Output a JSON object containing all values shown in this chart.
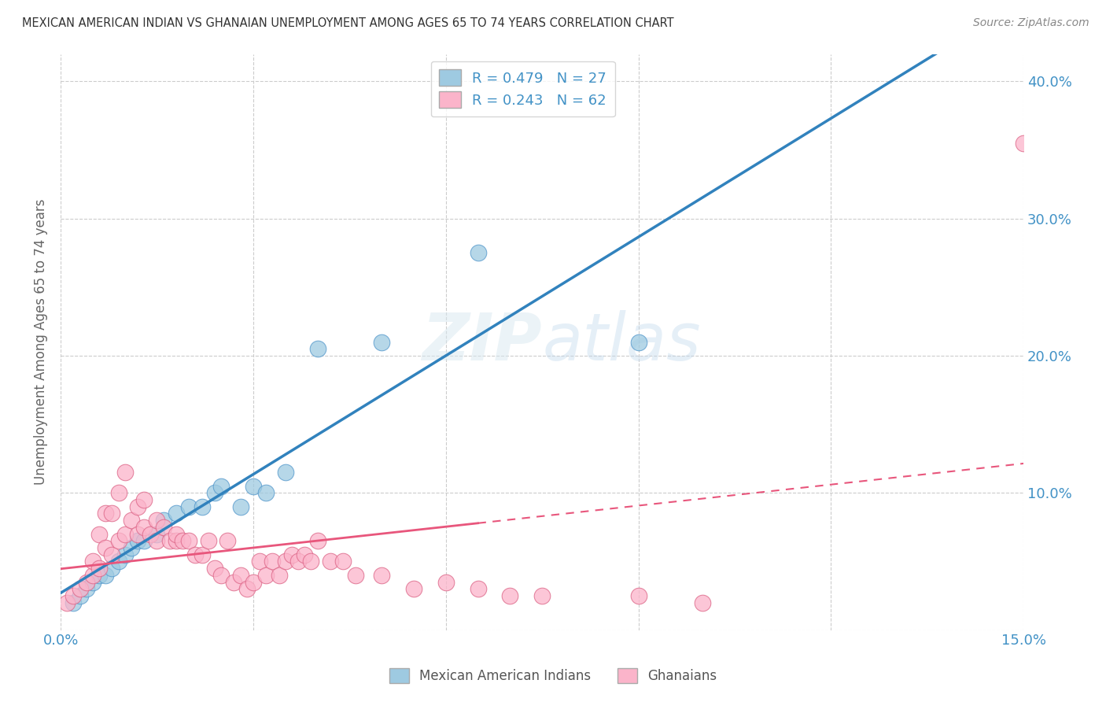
{
  "title": "MEXICAN AMERICAN INDIAN VS GHANAIAN UNEMPLOYMENT AMONG AGES 65 TO 74 YEARS CORRELATION CHART",
  "source": "Source: ZipAtlas.com",
  "ylabel": "Unemployment Among Ages 65 to 74 years",
  "xlim": [
    0.0,
    0.15
  ],
  "ylim": [
    0.0,
    0.42
  ],
  "watermark": "ZIPatlas",
  "blue_color": "#9ecae1",
  "pink_color": "#fbb4ca",
  "blue_line_color": "#3182bd",
  "pink_line_color": "#e8567c",
  "axis_label_color": "#4292c6",
  "blue_scatter_x": [
    0.002,
    0.003,
    0.004,
    0.005,
    0.006,
    0.007,
    0.008,
    0.009,
    0.01,
    0.011,
    0.012,
    0.013,
    0.015,
    0.016,
    0.018,
    0.02,
    0.022,
    0.024,
    0.025,
    0.028,
    0.03,
    0.032,
    0.035,
    0.04,
    0.05,
    0.065,
    0.09
  ],
  "blue_scatter_y": [
    0.02,
    0.025,
    0.03,
    0.035,
    0.04,
    0.04,
    0.045,
    0.05,
    0.055,
    0.06,
    0.065,
    0.065,
    0.07,
    0.08,
    0.085,
    0.09,
    0.09,
    0.1,
    0.105,
    0.09,
    0.105,
    0.1,
    0.115,
    0.205,
    0.21,
    0.275,
    0.21
  ],
  "pink_scatter_x": [
    0.001,
    0.002,
    0.003,
    0.004,
    0.005,
    0.005,
    0.006,
    0.006,
    0.007,
    0.007,
    0.008,
    0.008,
    0.009,
    0.009,
    0.01,
    0.01,
    0.011,
    0.012,
    0.012,
    0.013,
    0.013,
    0.014,
    0.015,
    0.015,
    0.016,
    0.017,
    0.018,
    0.018,
    0.019,
    0.02,
    0.021,
    0.022,
    0.023,
    0.024,
    0.025,
    0.026,
    0.027,
    0.028,
    0.029,
    0.03,
    0.031,
    0.032,
    0.033,
    0.034,
    0.035,
    0.036,
    0.037,
    0.038,
    0.039,
    0.04,
    0.042,
    0.044,
    0.046,
    0.05,
    0.055,
    0.06,
    0.065,
    0.07,
    0.075,
    0.09,
    0.1,
    0.15
  ],
  "pink_scatter_y": [
    0.02,
    0.025,
    0.03,
    0.035,
    0.04,
    0.05,
    0.045,
    0.07,
    0.06,
    0.085,
    0.055,
    0.085,
    0.065,
    0.1,
    0.07,
    0.115,
    0.08,
    0.07,
    0.09,
    0.075,
    0.095,
    0.07,
    0.065,
    0.08,
    0.075,
    0.065,
    0.065,
    0.07,
    0.065,
    0.065,
    0.055,
    0.055,
    0.065,
    0.045,
    0.04,
    0.065,
    0.035,
    0.04,
    0.03,
    0.035,
    0.05,
    0.04,
    0.05,
    0.04,
    0.05,
    0.055,
    0.05,
    0.055,
    0.05,
    0.065,
    0.05,
    0.05,
    0.04,
    0.04,
    0.03,
    0.035,
    0.03,
    0.025,
    0.025,
    0.025,
    0.02,
    0.355
  ]
}
